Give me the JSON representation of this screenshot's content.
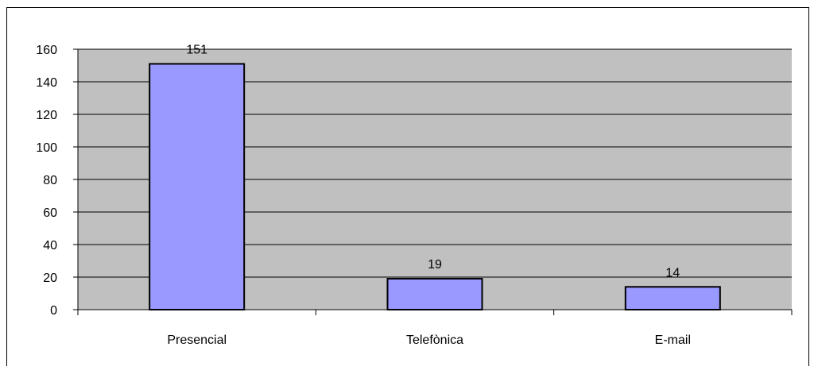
{
  "chart_data": {
    "type": "bar",
    "categories": [
      "Presencial",
      "Telefònica",
      "E-mail"
    ],
    "values": [
      151,
      19,
      14
    ],
    "data_labels": [
      "151",
      "19",
      "14"
    ],
    "ylim": [
      0,
      160
    ],
    "yticks": [
      0,
      20,
      40,
      60,
      80,
      100,
      120,
      140,
      160
    ],
    "grid": true,
    "legend": "none",
    "colors": {
      "bar_fill": "#9999ff",
      "bar_stroke": "#000000",
      "plot_background": "#c0c0c0",
      "gridline": "#000000"
    }
  }
}
